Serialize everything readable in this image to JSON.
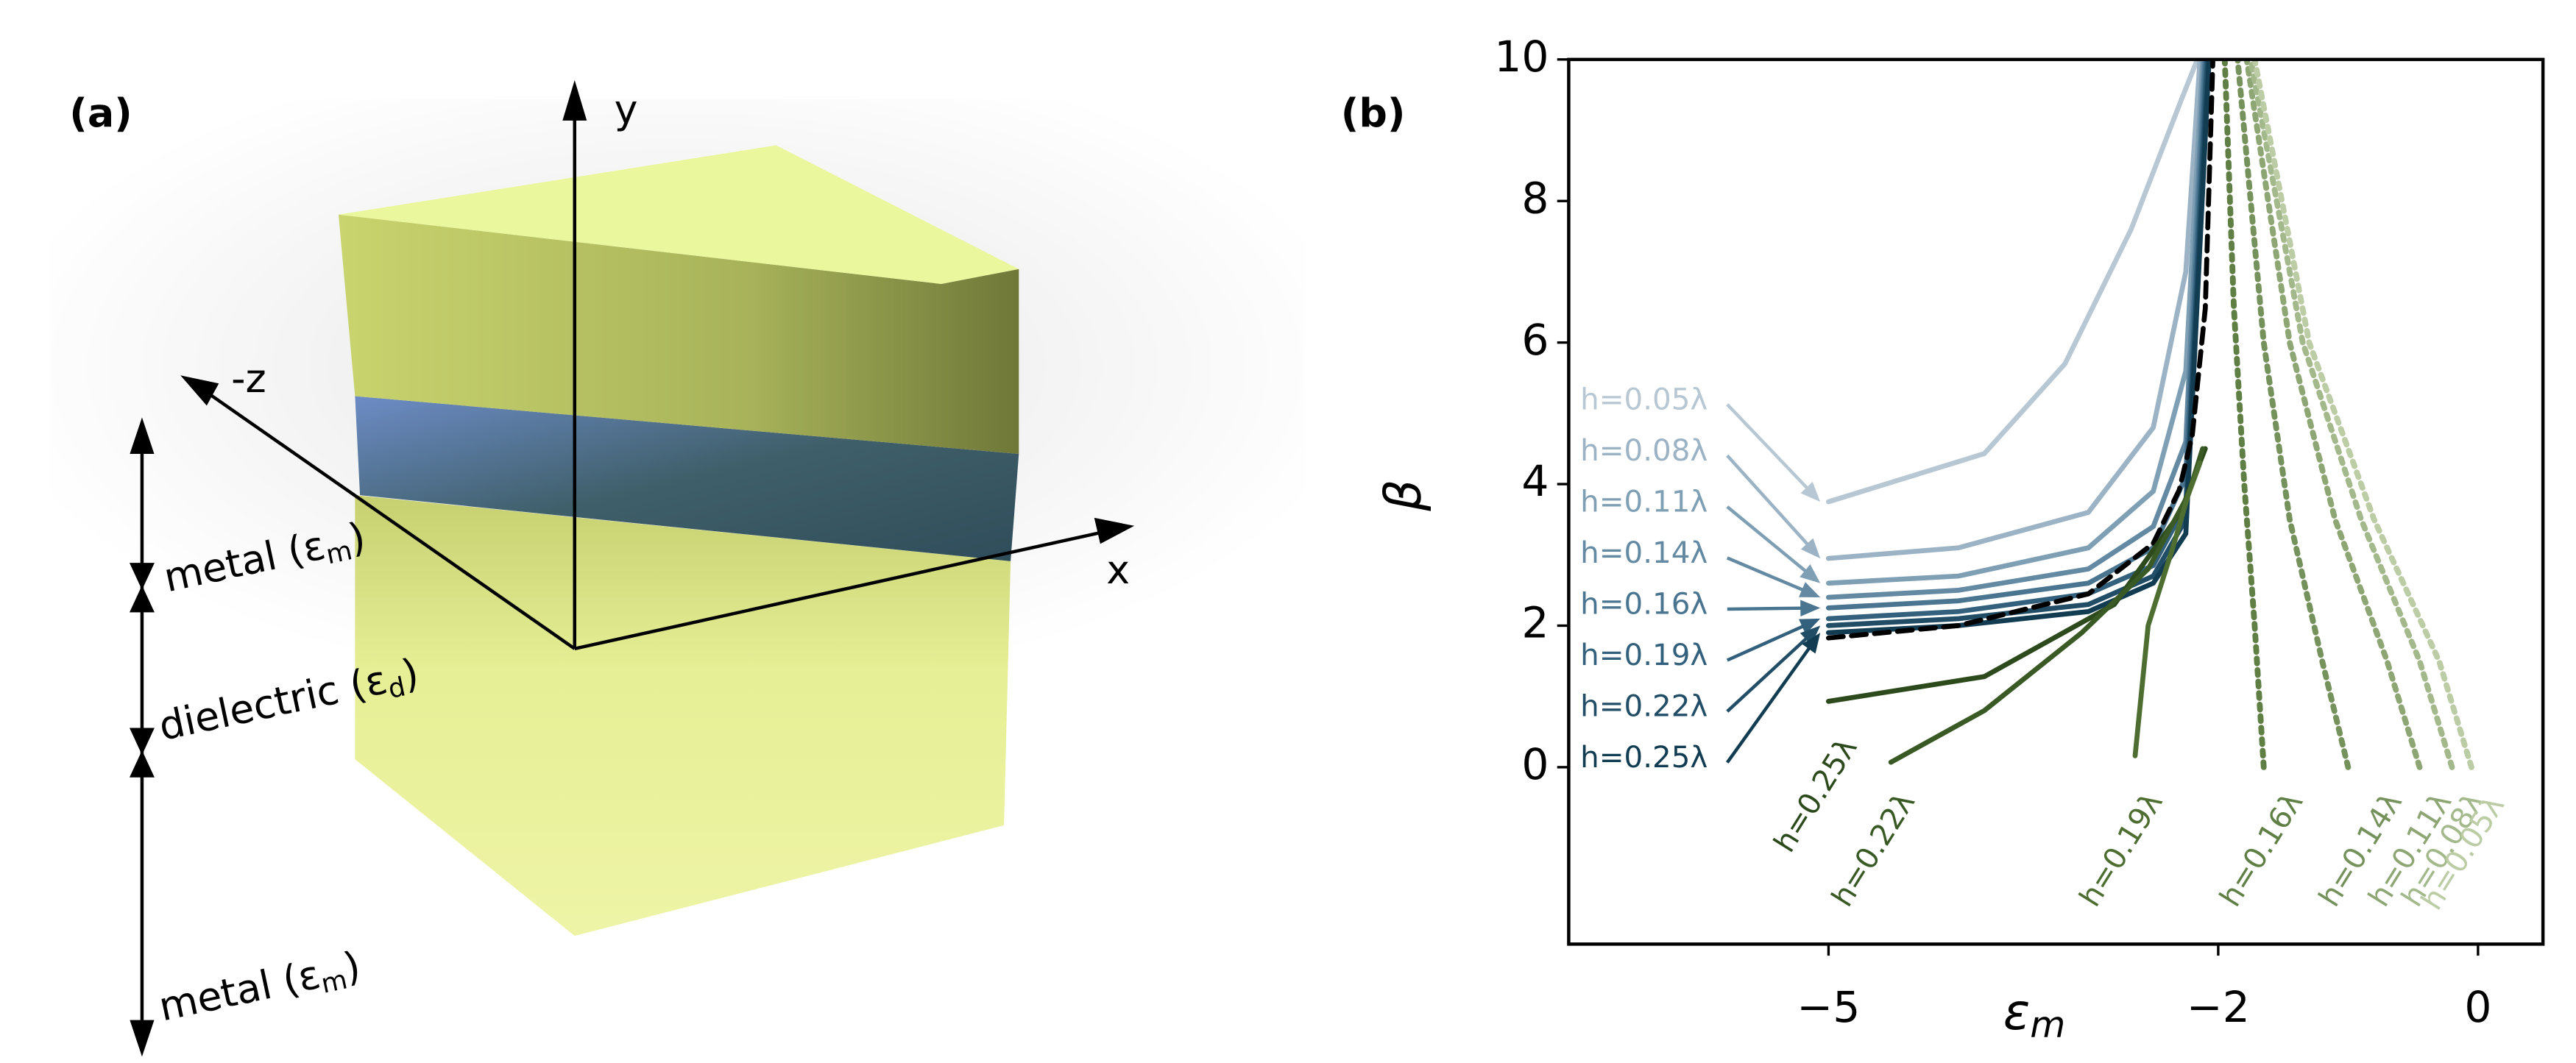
{
  "panel_a": {
    "label": "(a)",
    "axes": [
      "y",
      "x",
      "-z"
    ],
    "layers": [
      {
        "text": "metal (ε",
        "sub": "m",
        "end": ")"
      },
      {
        "text": "dielectric (ε",
        "sub": "d",
        "end": ")"
      },
      {
        "text": "metal (ε",
        "sub": "m",
        "end": ")"
      }
    ]
  },
  "chart_data": {
    "type": "line",
    "panel_label": "(b)",
    "x_label": {
      "symbol": "ε",
      "subscript": "m"
    },
    "y_label": "β",
    "xlim": [
      -7,
      0.5
    ],
    "ylim": [
      -2.5,
      10
    ],
    "xticks": [
      {
        "value": -5,
        "label": "−5"
      },
      {
        "value": -2,
        "label": "−2"
      },
      0
    ],
    "yticks": [
      0,
      2,
      4,
      6,
      8,
      10
    ],
    "series": [
      {
        "name": "h=0.05λ",
        "color": "#b7c7d3",
        "style": "solid",
        "x": [
          -5,
          -3.8,
          -3.18,
          -2.67,
          -2.29,
          -2.16
        ],
        "values": [
          3.75,
          4.43,
          5.7,
          7.6,
          9.4,
          10
        ]
      },
      {
        "name": "h=0.08λ",
        "color": "#9bb3c5",
        "style": "solid",
        "x": [
          -5,
          -4,
          -3,
          -2.5,
          -2.25,
          -2.14
        ],
        "values": [
          2.95,
          3.1,
          3.6,
          4.8,
          7.0,
          10
        ]
      },
      {
        "name": "h=0.11λ",
        "color": "#7f9fb5",
        "style": "solid",
        "x": [
          -5,
          -4,
          -3,
          -2.5,
          -2.25,
          -2.12
        ],
        "values": [
          2.6,
          2.7,
          3.1,
          3.9,
          5.6,
          10
        ]
      },
      {
        "name": "h=0.14λ",
        "color": "#6389a3",
        "style": "solid",
        "x": [
          -5,
          -4,
          -3,
          -2.5,
          -2.25,
          -2.11
        ],
        "values": [
          2.4,
          2.5,
          2.8,
          3.4,
          4.6,
          10
        ]
      },
      {
        "name": "h=0.16λ",
        "color": "#4a7591",
        "style": "solid",
        "x": [
          -5,
          -4,
          -3,
          -2.5,
          -2.25,
          -2.1
        ],
        "values": [
          2.25,
          2.35,
          2.6,
          3.1,
          4.1,
          10
        ]
      },
      {
        "name": "h=0.19λ",
        "color": "#33607c",
        "style": "solid",
        "x": [
          -5,
          -4,
          -3,
          -2.5,
          -2.25,
          -2.09
        ],
        "values": [
          2.1,
          2.2,
          2.45,
          2.85,
          3.7,
          10
        ]
      },
      {
        "name": "h=0.22λ",
        "color": "#214d67",
        "style": "solid",
        "x": [
          -5,
          -4,
          -3,
          -2.5,
          -2.25,
          -2.08
        ],
        "values": [
          2.0,
          2.1,
          2.3,
          2.7,
          3.5,
          10
        ]
      },
      {
        "name": "h=0.25λ",
        "color": "#123c52",
        "style": "solid",
        "x": [
          -5,
          -4,
          -3,
          -2.5,
          -2.25,
          -2.07
        ],
        "values": [
          1.9,
          2.0,
          2.2,
          2.6,
          3.3,
          10
        ]
      },
      {
        "color": "#000000",
        "style": "dashed",
        "x": [
          -5,
          -4,
          -3,
          -2.5,
          -2.3,
          -2.2,
          -2.1,
          -2.041
        ],
        "values": [
          1.826,
          2.0,
          2.449,
          3.162,
          3.916,
          4.69,
          6.48,
          10
        ]
      },
      {
        "name": "h=0.25λ",
        "color": "#2c4a1c",
        "style": "solid",
        "x": [
          -5,
          -3.8,
          -2.8,
          -2.29,
          -2.1
        ],
        "values": [
          0.93,
          1.28,
          2.3,
          3.6,
          4.5
        ]
      },
      {
        "name": "h=0.22λ",
        "color": "#3a5a25",
        "style": "solid",
        "x": [
          -4.52,
          -3.8,
          -3.05,
          -2.54,
          -2.23,
          -2.12
        ],
        "values": [
          0.07,
          0.8,
          1.9,
          2.8,
          3.85,
          4.5
        ]
      },
      {
        "name": "h=0.19λ",
        "color": "#4d6e30",
        "style": "solid",
        "x": [
          -2.64,
          -2.54,
          -2.35,
          -2.23,
          -2.14
        ],
        "values": [
          0.16,
          2.0,
          3.1,
          3.85,
          4.3
        ]
      },
      {
        "name": "h=0.16λ",
        "color": "#5f7f45",
        "style": "dotted",
        "x": [
          -1.65,
          -1.72,
          -1.8,
          -1.88,
          -1.95
        ],
        "values": [
          0,
          2,
          4,
          6.5,
          10
        ]
      },
      {
        "name": "h=0.14λ",
        "color": "#76925c",
        "style": "dotted",
        "x": [
          -1.0,
          -1.2,
          -1.45,
          -1.65,
          -1.85
        ],
        "values": [
          0,
          1.5,
          3.5,
          6,
          10
        ]
      },
      {
        "name": "h=0.11λ",
        "color": "#8da673",
        "style": "dotted",
        "x": [
          -0.45,
          -0.7,
          -1.1,
          -1.45,
          -1.78
        ],
        "values": [
          0,
          1.5,
          3.5,
          6,
          10
        ]
      },
      {
        "name": "h=0.08λ",
        "color": "#a4b98b",
        "style": "dotted",
        "x": [
          -0.2,
          -0.45,
          -0.9,
          -1.35,
          -1.75
        ],
        "values": [
          0,
          1.5,
          3.5,
          6,
          10
        ]
      },
      {
        "name": "h=0.05λ",
        "color": "#bccda6",
        "style": "dotted",
        "x": [
          -0.05,
          -0.3,
          -0.8,
          -1.3,
          -1.72
        ],
        "values": [
          0,
          1.5,
          3.5,
          6,
          10
        ]
      }
    ]
  }
}
